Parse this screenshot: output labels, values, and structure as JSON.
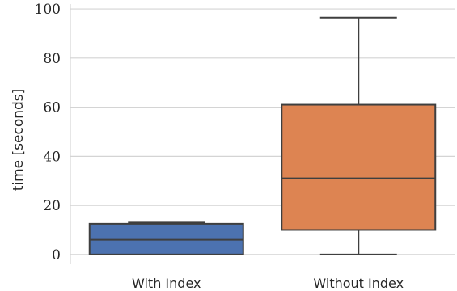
{
  "chart_data": {
    "type": "box",
    "title": "",
    "xlabel": "",
    "ylabel": "time [seconds]",
    "ylim": [
      -4,
      102
    ],
    "yticks": [
      0,
      20,
      40,
      60,
      80,
      100
    ],
    "grid": "horizontal",
    "categories": [
      "With Index",
      "Without Index"
    ],
    "boxes": [
      {
        "category": "With Index",
        "whisker_low": 0,
        "q1": 0,
        "median": 6,
        "q3": 12.5,
        "whisker_high": 13,
        "color": "#4c72b0"
      },
      {
        "category": "Without Index",
        "whisker_low": 0,
        "q1": 10,
        "median": 31,
        "q3": 61,
        "whisker_high": 96.5,
        "color": "#dd8452"
      }
    ]
  }
}
